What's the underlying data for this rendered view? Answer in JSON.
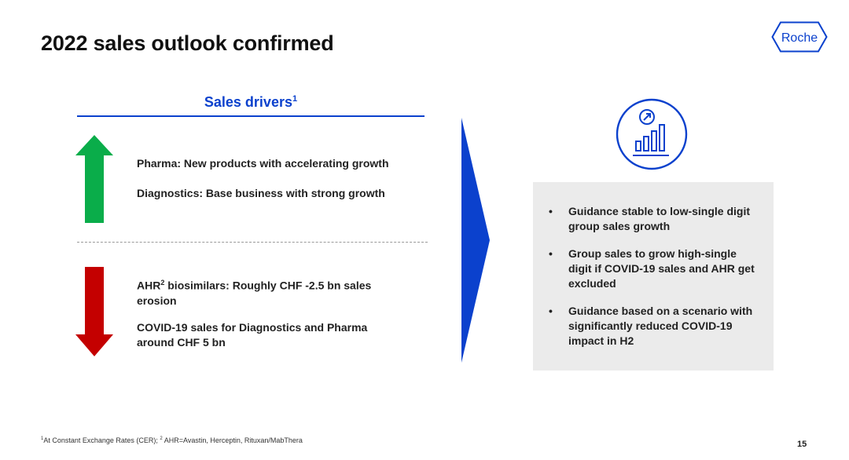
{
  "slide": {
    "title": "2022 sales outlook confirmed",
    "logo_text": "Roche",
    "page_number": "15"
  },
  "sales_drivers": {
    "heading": "Sales drivers",
    "heading_footnote_mark": "1",
    "positive": [
      "Pharma: New products with accelerating growth",
      "Diagnostics: Base business with strong growth"
    ],
    "negative": {
      "ahr_prefix": "AHR",
      "ahr_footnote_mark": "2",
      "ahr_rest": " biosimilars: Roughly CHF -2.5 bn sales erosion",
      "covid": "COVID-19 sales for Diagnostics and Pharma around CHF 5 bn"
    }
  },
  "guidance": {
    "items": [
      "Guidance stable to low-single digit group sales growth",
      "Group sales to grow high-single digit if COVID-19 sales and AHR get excluded",
      "Guidance based on a scenario with significantly reduced COVID-19 impact in H2"
    ]
  },
  "footnote": {
    "mark1": "1",
    "text1": "At Constant Exchange Rates (CER); ",
    "mark2": "2",
    "text2": " AHR=Avastin, Herceptin, Rituxan/MabThera"
  },
  "colors": {
    "brand_blue": "#0b41cd",
    "up_arrow_green": "#0aad4a",
    "down_arrow_red": "#c40000",
    "guidance_bg": "#ebebeb"
  },
  "icons": {
    "up_arrow": "up-arrow-icon",
    "down_arrow": "down-arrow-icon",
    "chevron": "chevron-right-icon",
    "outlook": "growth-chart-icon"
  }
}
